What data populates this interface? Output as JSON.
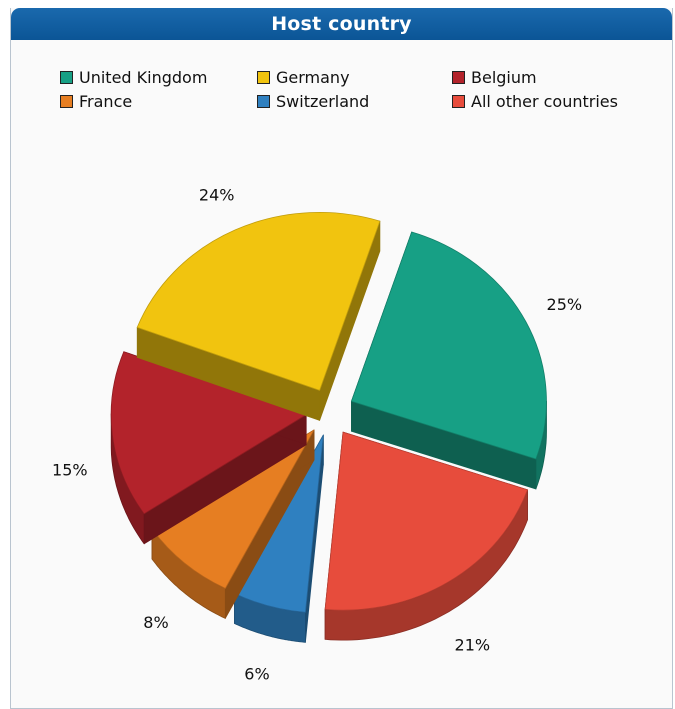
{
  "panel": {
    "title": "Host country"
  },
  "chart_data": {
    "type": "pie",
    "title": "Host country",
    "exploded": true,
    "three_d": true,
    "legend_position": "top",
    "slices": [
      {
        "label": "United Kingdom",
        "value": 25,
        "display": "25%",
        "color": "#17a085"
      },
      {
        "label": "All other countries",
        "value": 21,
        "display": "21%",
        "color": "#e74c3c"
      },
      {
        "label": "Switzerland",
        "value": 6,
        "display": "6%",
        "color": "#2f80c0"
      },
      {
        "label": "France",
        "value": 8,
        "display": "8%",
        "color": "#e67e22"
      },
      {
        "label": "Belgium",
        "value": 15,
        "display": "15%",
        "color": "#b3232b"
      },
      {
        "label": "Germany",
        "value": 24,
        "display": "24%",
        "color": "#f1c40f"
      }
    ],
    "legend": [
      {
        "label": "United Kingdom",
        "color": "#17a085"
      },
      {
        "label": "Germany",
        "color": "#f1c40f"
      },
      {
        "label": "Belgium",
        "color": "#b3232b"
      },
      {
        "label": "France",
        "color": "#e67e22"
      },
      {
        "label": "Switzerland",
        "color": "#2f80c0"
      },
      {
        "label": "All other countries",
        "color": "#e74c3c"
      }
    ]
  }
}
